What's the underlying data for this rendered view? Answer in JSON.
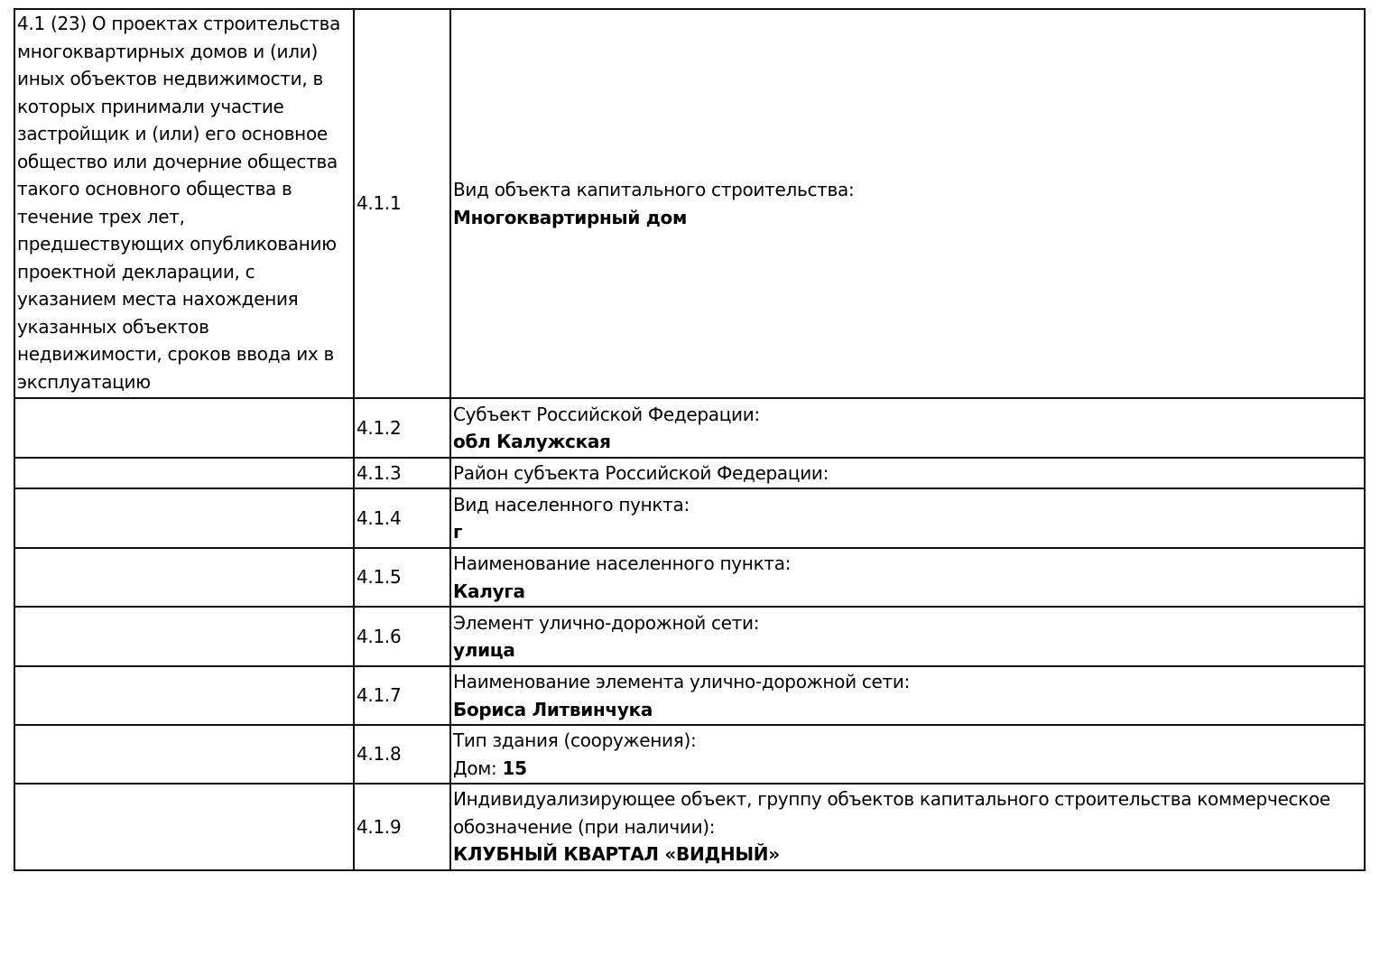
{
  "section": {
    "title": "4.1 (23) О проектах строительства многоквартирных домов и (или) иных объектов недвижимости, в которых принимали участие застройщик и (или) его основное общество или дочерние общества такого основного общества в течение трех лет, предшествующих опубликованию проектной декларации, с указанием места нахождения указанных объектов недвижимости, сроков ввода их в эксплуатацию"
  },
  "rows": [
    {
      "code": "4.1.1",
      "label": "Вид объекта капитального строительства:",
      "value": "Многоквартирный дом"
    },
    {
      "code": "4.1.2",
      "label": "Субъект Российской Федерации:",
      "value": "обл Калужская"
    },
    {
      "code": "4.1.3",
      "label": "Район субъекта Российской Федерации:",
      "value": ""
    },
    {
      "code": "4.1.4",
      "label": "Вид населенного пункта:",
      "value": "г"
    },
    {
      "code": "4.1.5",
      "label": "Наименование населенного пункта:",
      "value": "Калуга"
    },
    {
      "code": "4.1.6",
      "label": "Элемент улично-дорожной сети:",
      "value": "улица"
    },
    {
      "code": "4.1.7",
      "label": "Наименование элемента улично-дорожной сети:",
      "value": "Бориса Литвинчука"
    },
    {
      "code": "4.1.8",
      "label": "Тип здания (сооружения):",
      "value_prefix": "Дом: ",
      "value": "15"
    },
    {
      "code": "4.1.9",
      "label": "Индивидуализирующее объект, группу объектов капитального строительства коммерческое обозначение (при наличии):",
      "value": "КЛУБНЫЙ КВАРТАЛ «ВИДНЫЙ»"
    }
  ]
}
